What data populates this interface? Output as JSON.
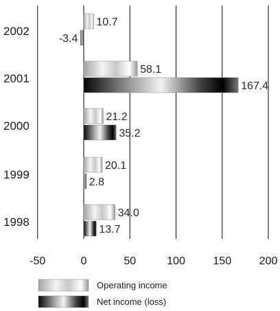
{
  "chart_data": {
    "type": "bar",
    "orientation": "horizontal",
    "categories": [
      "2002",
      "2001",
      "2000",
      "1999",
      "1998"
    ],
    "series": [
      {
        "name": "Operating income",
        "values": [
          10.7,
          58.1,
          21.2,
          20.1,
          34.0
        ],
        "labels": [
          "10.7",
          "58.1",
          "21.2",
          "20.1",
          "34.0"
        ]
      },
      {
        "name": "Net income (loss)",
        "values": [
          -3.4,
          167.4,
          35.2,
          2.8,
          13.7
        ],
        "labels": [
          "-3.4",
          "167.4",
          "35.2",
          "2.8",
          "13.7"
        ]
      }
    ],
    "xticks": [
      "-50",
      "0",
      "50",
      "100",
      "150",
      "200"
    ],
    "xlim": [
      -50,
      200
    ],
    "grid": "vertical",
    "legend_position": "bottom",
    "colors": {
      "operating": "#bdbdbd",
      "net": "#111111",
      "grid": "#000000"
    }
  }
}
